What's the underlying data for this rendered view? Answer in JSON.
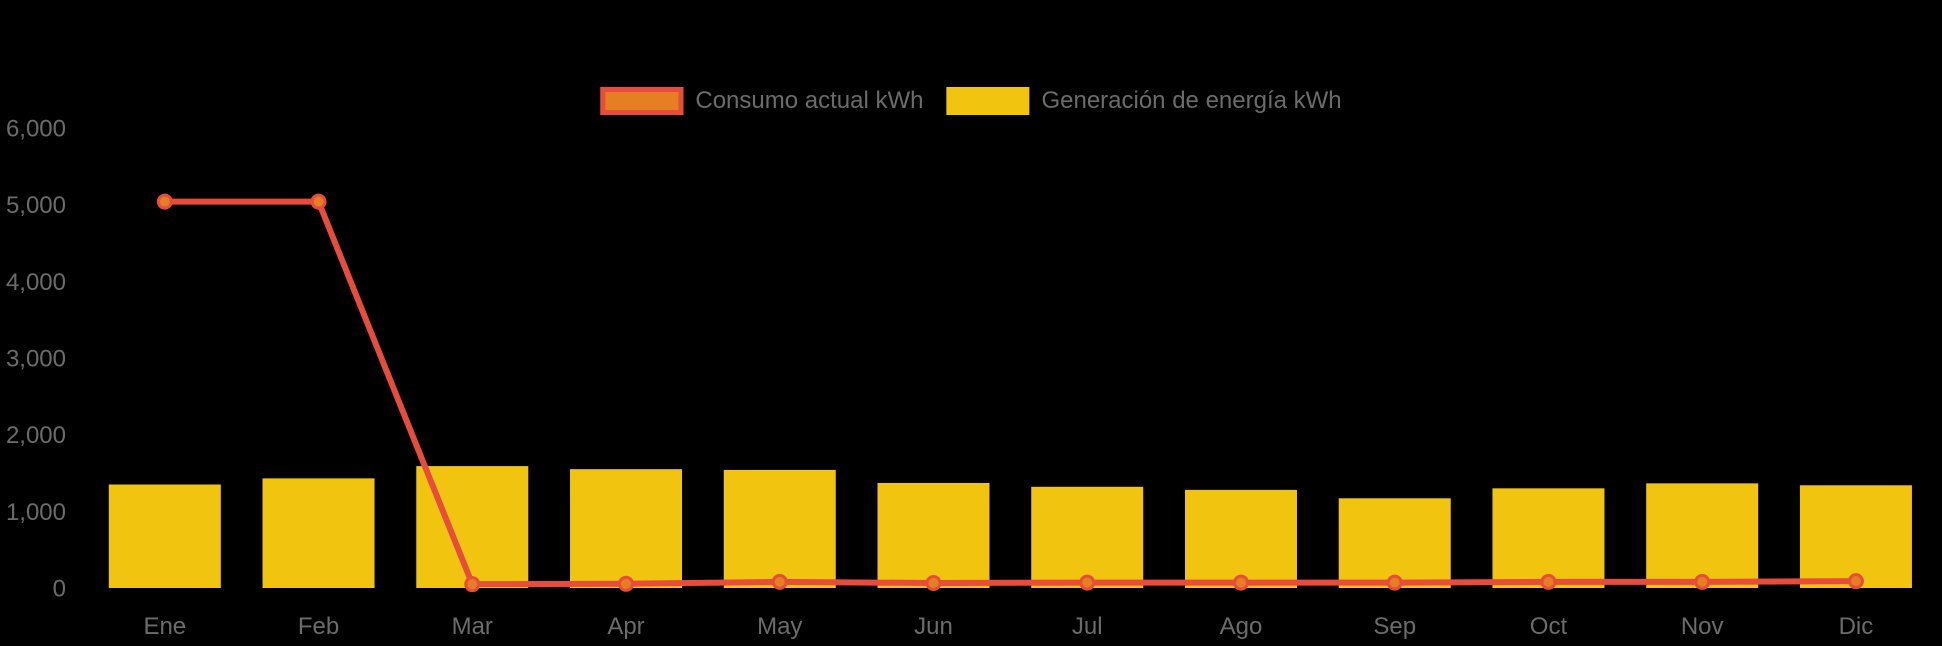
{
  "chart_data": {
    "type": "bar+line",
    "title": "",
    "xlabel": "",
    "ylabel": "",
    "categories": [
      "Ene",
      "Feb",
      "Mar",
      "Apr",
      "May",
      "Jun",
      "Jul",
      "Ago",
      "Sep",
      "Oct",
      "Nov",
      "Dic"
    ],
    "series": [
      {
        "name": "Consumo actual kWh",
        "type": "line",
        "color": "#e74c3c",
        "point_color": "#e67e22",
        "values": [
          5040,
          5040,
          50,
          55,
          80,
          65,
          70,
          70,
          70,
          80,
          80,
          90
        ]
      },
      {
        "name": "Generación de energía kWh",
        "type": "bar",
        "color": "#f1c40f",
        "values": [
          1350,
          1430,
          1590,
          1550,
          1540,
          1370,
          1320,
          1280,
          1170,
          1300,
          1365,
          1340
        ]
      }
    ],
    "ylim": [
      0,
      6000
    ],
    "yticks": {
      "values": [
        0,
        1000,
        2000,
        3000,
        4000,
        5000,
        6000
      ],
      "labels": [
        "0",
        "1,000",
        "2,000",
        "3,000",
        "4,000",
        "5,000",
        "6,000"
      ]
    },
    "grid": false,
    "legend_position": "top-center",
    "colors": {
      "background": "#000000",
      "axis_text": "#6b6b6b",
      "legend_text": "#6b6b6b"
    }
  }
}
